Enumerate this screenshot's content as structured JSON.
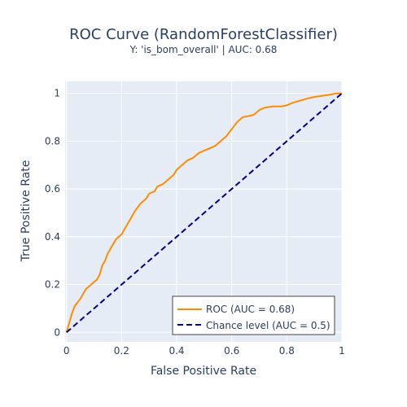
{
  "chart_data": {
    "type": "line",
    "title": "ROC Curve (RandomForestClassifier)",
    "subtitle": "Y: 'is_bom_overall' | AUC: 0.68",
    "xlabel": "False Positive Rate",
    "ylabel": "True Positive Rate",
    "xlim": [
      -0.005,
      1.0
    ],
    "ylim": [
      -0.04,
      1.05
    ],
    "x_ticks": [
      "0",
      "0.2",
      "0.4",
      "0.6",
      "0.8",
      "1"
    ],
    "y_ticks": [
      "0",
      "0.2",
      "0.4",
      "0.6",
      "0.8",
      "1"
    ],
    "grid": true,
    "legend_position": "bottom-right",
    "series": [
      {
        "name": "ROC (AUC = 0.68)",
        "color": "#ff8c00",
        "dash": "solid",
        "x": [
          0,
          0.005,
          0.01,
          0.02,
          0.03,
          0.05,
          0.07,
          0.09,
          0.11,
          0.12,
          0.13,
          0.14,
          0.15,
          0.16,
          0.17,
          0.18,
          0.19,
          0.2,
          0.21,
          0.22,
          0.23,
          0.24,
          0.25,
          0.27,
          0.29,
          0.3,
          0.32,
          0.33,
          0.35,
          0.37,
          0.39,
          0.4,
          0.42,
          0.44,
          0.46,
          0.48,
          0.5,
          0.52,
          0.54,
          0.56,
          0.58,
          0.6,
          0.62,
          0.64,
          0.66,
          0.68,
          0.7,
          0.72,
          0.75,
          0.78,
          0.8,
          0.82,
          0.85,
          0.88,
          0.9,
          0.93,
          0.96,
          0.98,
          1.0
        ],
        "y": [
          0,
          0.02,
          0.04,
          0.08,
          0.11,
          0.14,
          0.18,
          0.2,
          0.22,
          0.24,
          0.28,
          0.3,
          0.33,
          0.35,
          0.37,
          0.39,
          0.4,
          0.41,
          0.43,
          0.45,
          0.47,
          0.49,
          0.51,
          0.54,
          0.56,
          0.58,
          0.59,
          0.61,
          0.62,
          0.64,
          0.66,
          0.68,
          0.7,
          0.72,
          0.73,
          0.75,
          0.76,
          0.77,
          0.78,
          0.8,
          0.82,
          0.85,
          0.88,
          0.9,
          0.905,
          0.91,
          0.93,
          0.94,
          0.945,
          0.945,
          0.95,
          0.96,
          0.97,
          0.98,
          0.985,
          0.99,
          0.995,
          1.0,
          1.0
        ]
      },
      {
        "name": "Chance level (AUC = 0.5)",
        "color": "#000080",
        "dash": "dashed",
        "x": [
          0,
          1
        ],
        "y": [
          0,
          1
        ]
      }
    ],
    "colors": {
      "plot_background": "#e5ecf6",
      "gridline": "#ffffff",
      "text": "#2a3f5f"
    }
  }
}
